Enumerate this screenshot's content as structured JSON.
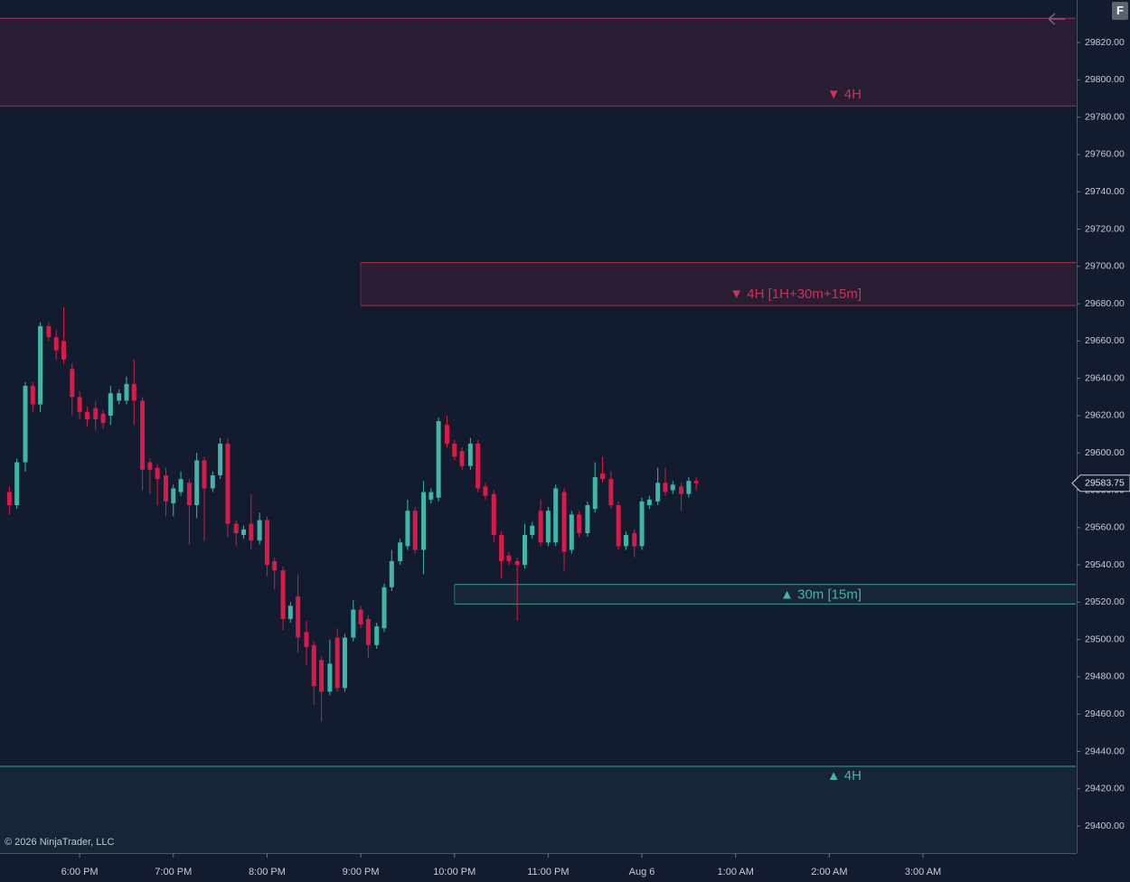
{
  "chart_data": {
    "type": "candlestick",
    "up_color": "#3fb6a8",
    "down_color": "#d81b4a",
    "x": [
      17.25,
      17.33,
      17.42,
      17.5,
      17.58,
      17.67,
      17.75,
      17.83,
      17.92,
      18,
      18.08,
      18.17,
      18.25,
      18.33,
      18.42,
      18.5,
      18.58,
      18.67,
      18.75,
      18.83,
      18.92,
      19,
      19.08,
      19.17,
      19.25,
      19.33,
      19.42,
      19.5,
      19.58,
      19.67,
      19.75,
      19.83,
      19.92,
      20,
      20.08,
      20.17,
      20.25,
      20.33,
      20.42,
      20.5,
      20.58,
      20.67,
      20.75,
      20.83,
      20.92,
      21,
      21.08,
      21.17,
      21.25,
      21.33,
      21.42,
      21.5,
      21.58,
      21.67,
      21.75,
      21.83,
      21.92,
      22,
      22.08,
      22.17,
      22.25,
      22.33,
      22.42,
      22.5,
      22.58,
      22.67,
      22.75,
      22.83,
      22.92,
      23,
      23.08,
      23.17,
      23.25,
      23.33,
      23.42,
      23.5,
      23.58,
      23.67,
      23.75,
      23.83,
      23.92,
      24,
      24.08,
      24.17,
      24.25,
      24.33,
      24.42,
      24.5,
      24.58
    ],
    "open": [
      29579,
      29572,
      29595,
      29636,
      29626,
      29668,
      29662,
      29660,
      29645,
      29630,
      29622,
      29624,
      29621,
      29620,
      29628,
      29628,
      29637,
      29628,
      29595,
      29592,
      29588,
      29573,
      29579,
      29584,
      29572,
      29596,
      29581,
      29588,
      29605,
      29562,
      29556,
      29562,
      29553,
      29564,
      29542,
      29537,
      29511,
      29523,
      29504,
      29497,
      29489,
      29472,
      29501,
      29474,
      29501,
      29516,
      29511,
      29497,
      29506,
      29528,
      29542,
      29550,
      29569,
      29548,
      29575,
      29576,
      29615,
      29605,
      29601,
      29593,
      29605,
      29582,
      29578,
      29556,
      29545,
      29542,
      29540,
      29556,
      29569,
      29552,
      29552,
      29579,
      29548,
      29567,
      29557,
      29570,
      29589,
      29586,
      29572,
      29550,
      29557,
      29550,
      29572,
      29574,
      29584,
      29580,
      29582,
      29578,
      29585
    ],
    "high": [
      29582,
      29597,
      29638,
      29638,
      29670,
      29670,
      29666,
      29678,
      29648,
      29633,
      29625,
      29628,
      29623,
      29636,
      29634,
      29641,
      29650,
      29630,
      29597,
      29594,
      29592,
      29583,
      29590,
      29586,
      29600,
      29598,
      29590,
      29608,
      29608,
      29564,
      29561,
      29578,
      29568,
      29566,
      29544,
      29539,
      29520,
      29535,
      29510,
      29499,
      29491,
      29500,
      29506,
      29503,
      29521,
      29518,
      29513,
      29509,
      29530,
      29548,
      29554,
      29575,
      29571,
      29585,
      29581,
      29619,
      29620,
      29607,
      29603,
      29608,
      29607,
      29584,
      29580,
      29558,
      29547,
      29544,
      29562,
      29563,
      29575,
      29571,
      29583,
      29581,
      29569,
      29569,
      29574,
      29595,
      29598,
      29590,
      29574,
      29558,
      29559,
      29576,
      29577,
      29592,
      29592,
      29585,
      29584,
      29587,
      29587
    ],
    "low": [
      29567,
      29570,
      29590,
      29622,
      29622,
      29660,
      29650,
      29648,
      29620,
      29618,
      29614,
      29612,
      29613,
      29615,
      29626,
      29626,
      29615,
      29580,
      29578,
      29572,
      29566,
      29566,
      29577,
      29551,
      29565,
      29553,
      29579,
      29586,
      29555,
      29550,
      29554,
      29548,
      29551,
      29534,
      29527,
      29505,
      29509,
      29493,
      29486,
      29465,
      29456,
      29470,
      29472,
      29472,
      29499,
      29506,
      29490,
      29495,
      29504,
      29526,
      29540,
      29548,
      29546,
      29535,
      29573,
      29574,
      29603,
      29596,
      29591,
      29591,
      29579,
      29575,
      29552,
      29533,
      29540,
      29510,
      29538,
      29554,
      29550,
      29550,
      29550,
      29537,
      29546,
      29555,
      29555,
      29568,
      29584,
      29570,
      29548,
      29548,
      29544,
      29548,
      29570,
      29572,
      29577,
      29578,
      29569,
      29576,
      29580
    ],
    "close": [
      29572,
      29595,
      29636,
      29626,
      29668,
      29662,
      29655,
      29650,
      29630,
      29622,
      29618,
      29618,
      29616,
      29632,
      29632,
      29637,
      29628,
      29591,
      29591,
      29586,
      29574,
      29581,
      29586,
      29572,
      29596,
      29581,
      29588,
      29605,
      29562,
      29557,
      29559,
      29553,
      29564,
      29540,
      29537,
      29511,
      29518,
      29501,
      29496,
      29475,
      29472,
      29487,
      29474,
      29501,
      29516,
      29508,
      29497,
      29507,
      29528,
      29542,
      29552,
      29569,
      29548,
      29579,
      29579,
      29617,
      29605,
      29598,
      29593,
      29605,
      29581,
      29577,
      29556,
      29542,
      29542,
      29540,
      29556,
      29561,
      29552,
      29569,
      29581,
      29547,
      29567,
      29557,
      29572,
      29587,
      29586,
      29572,
      29550,
      29556,
      29550,
      29574,
      29575,
      29584,
      29579,
      29583,
      29578,
      29585,
      29583.75
    ],
    "xlim": [
      17.15,
      28.63
    ],
    "xticks": [
      {
        "value": 18,
        "label": "6:00 PM"
      },
      {
        "value": 19,
        "label": "7:00 PM"
      },
      {
        "value": 20,
        "label": "8:00 PM"
      },
      {
        "value": 21,
        "label": "9:00 PM"
      },
      {
        "value": 22,
        "label": "10:00 PM"
      },
      {
        "value": 23,
        "label": "11:00 PM"
      },
      {
        "value": 24,
        "label": "Aug 6"
      },
      {
        "value": 25,
        "label": "1:00 AM"
      },
      {
        "value": 26,
        "label": "2:00 AM"
      },
      {
        "value": 27,
        "label": "3:00 AM"
      }
    ],
    "ylim": [
      29385.5,
      29842.8
    ],
    "yticks": [
      {
        "value": 29400,
        "label": "29400.00"
      },
      {
        "value": 29420,
        "label": "29420.00"
      },
      {
        "value": 29440,
        "label": "29440.00"
      },
      {
        "value": 29460,
        "label": "29460.00"
      },
      {
        "value": 29480,
        "label": "29480.00"
      },
      {
        "value": 29500,
        "label": "29500.00"
      },
      {
        "value": 29520,
        "label": "29520.00"
      },
      {
        "value": 29540,
        "label": "29540.00"
      },
      {
        "value": 29560,
        "label": "29560.00"
      },
      {
        "value": 29580,
        "label": "29580.00"
      },
      {
        "value": 29600,
        "label": "29600.00"
      },
      {
        "value": 29620,
        "label": "29620.00"
      },
      {
        "value": 29640,
        "label": "29640.00"
      },
      {
        "value": 29660,
        "label": "29660.00"
      },
      {
        "value": 29680,
        "label": "29680.00"
      },
      {
        "value": 29700,
        "label": "29700.00"
      },
      {
        "value": 29720,
        "label": "29720.00"
      },
      {
        "value": 29740,
        "label": "29740.00"
      },
      {
        "value": 29760,
        "label": "29760.00"
      },
      {
        "value": 29780,
        "label": "29780.00"
      },
      {
        "value": 29800,
        "label": "29800.00"
      },
      {
        "value": 29820,
        "label": "29820.00"
      }
    ],
    "last_price": 29583.75,
    "zones": [
      {
        "label": "▼ 4H",
        "top": 29833,
        "bottom": 29786,
        "color": "#c8345a"
      },
      {
        "label": "▼ 4H [1H+30m+15m]",
        "top": 29702,
        "bottom": 29679,
        "start": 21,
        "color": "#c8345a"
      },
      {
        "label": "▲ 30m [15m]",
        "top": 29529.5,
        "bottom": 29519,
        "start": 22,
        "color": "#3fb6a8"
      },
      {
        "label": "▲ 4H",
        "top": 29432,
        "color": "#3fb6a8"
      }
    ],
    "copyright": "© 2026 NinjaTrader, LLC",
    "button": "F"
  }
}
